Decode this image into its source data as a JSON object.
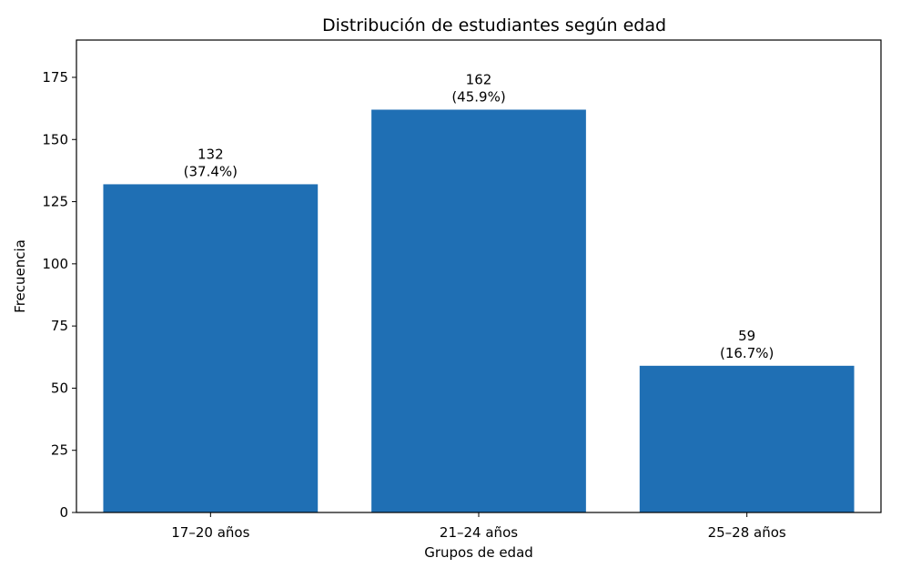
{
  "chart_data": {
    "type": "bar",
    "title": "Distribución de estudiantes según edad",
    "xlabel": "Grupos de edad",
    "ylabel": "Frecuencia",
    "categories": [
      "17–20 años",
      "21–24 años",
      "25–28 años"
    ],
    "values": [
      132,
      162,
      59
    ],
    "value_labels": [
      "132",
      "162",
      "59"
    ],
    "percent_labels": [
      "(37.4%)",
      "(45.9%)",
      "(16.7%)"
    ],
    "ylim": [
      0,
      190
    ],
    "yticks": [
      0,
      25,
      50,
      75,
      100,
      125,
      150,
      175
    ],
    "grid": false,
    "bar_color": "#1f6fb4"
  }
}
